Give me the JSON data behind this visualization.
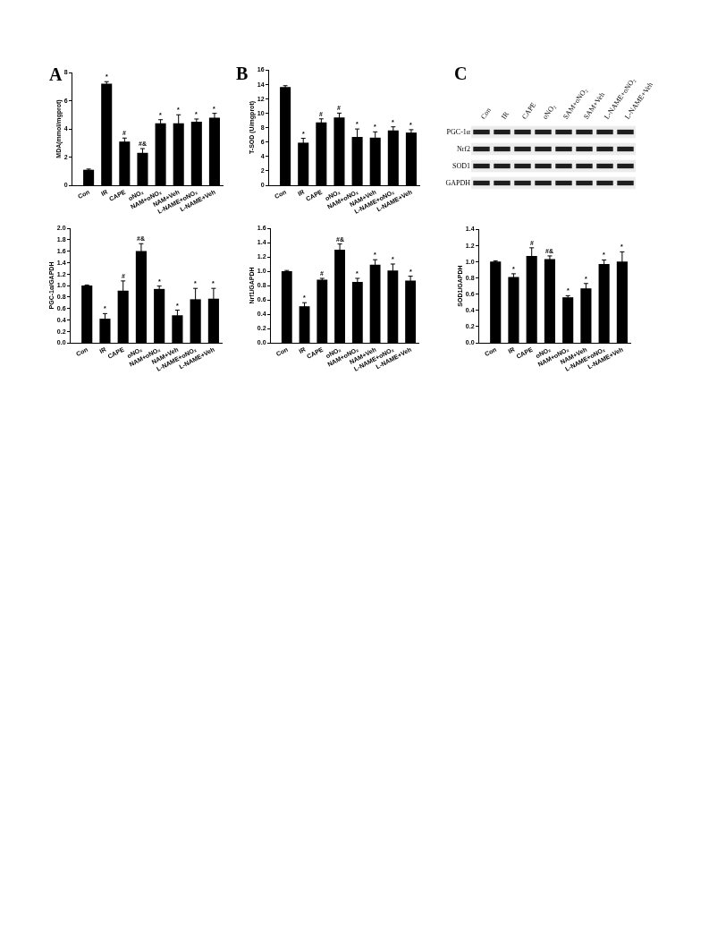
{
  "chart_data": [
    {
      "type": "bar",
      "title": "A",
      "ylabel": "MDA(mmol/mgprot)",
      "categories": [
        "Con",
        "IR",
        "CAPE",
        "oNO₂",
        "NAM+oNO₂",
        "NAM+Veh",
        "L-NAME+oNO₂",
        "L-NAME+Veh"
      ],
      "values": [
        1.1,
        7.2,
        3.1,
        2.3,
        4.4,
        4.4,
        4.5,
        4.8
      ],
      "errors": [
        0.05,
        0.15,
        0.25,
        0.3,
        0.25,
        0.6,
        0.2,
        0.3
      ],
      "color": "#000000",
      "ylim": [
        0,
        8
      ],
      "yticks": [
        0,
        2,
        4,
        6,
        8
      ],
      "annotations": [
        {
          "text": "*",
          "x": "IR",
          "y": 7.35
        },
        {
          "text": "#",
          "x": "CAPE",
          "y": 3.35
        },
        {
          "text": "#&",
          "x": "oNO₂",
          "y": 2.6
        },
        {
          "text": "*",
          "x": "NAM+oNO₂",
          "y": 4.65
        },
        {
          "text": "*",
          "x": "NAM+Veh",
          "y": 5.0
        },
        {
          "text": "*",
          "x": "L-NAME+oNO₂",
          "y": 4.7
        },
        {
          "text": "*",
          "x": "L-NAME+Veh",
          "y": 5.1
        }
      ]
    },
    {
      "type": "bar",
      "title": "B",
      "ylabel": "T-SOD (U/mgprot)",
      "categories": [
        "Con",
        "IR",
        "CAPE",
        "oNO₂",
        "NAM+oNO₂",
        "NAM+Veh",
        "L-NAME+oNO₂",
        "L-NAME+Veh"
      ],
      "values": [
        13.6,
        5.9,
        8.7,
        9.4,
        6.7,
        6.6,
        7.6,
        7.3
      ],
      "errors": [
        0.2,
        0.6,
        0.5,
        0.6,
        1.1,
        0.8,
        0.5,
        0.4
      ],
      "color": "#000000",
      "ylim": [
        0,
        16
      ],
      "yticks": [
        0,
        2,
        4,
        6,
        8,
        10,
        12,
        14,
        16
      ],
      "annotations": [
        {
          "text": "*",
          "x": "IR",
          "y": 6.5
        },
        {
          "text": "#",
          "x": "CAPE",
          "y": 9.2
        },
        {
          "text": "#",
          "x": "oNO₂",
          "y": 10.0
        },
        {
          "text": "*",
          "x": "NAM+oNO₂",
          "y": 7.8
        },
        {
          "text": "*",
          "x": "NAM+Veh",
          "y": 7.4
        },
        {
          "text": "*",
          "x": "L-NAME+oNO₂",
          "y": 8.1
        },
        {
          "text": "*",
          "x": "L-NAME+Veh",
          "y": 7.7
        }
      ]
    },
    {
      "type": "other",
      "title": "C",
      "categories": [
        "Con",
        "IR",
        "CAPE",
        "oNO₂",
        "SAM+oNO₂",
        "SAM+Veh",
        "L-NAME+oNO₂",
        "L-NAME+Veh"
      ],
      "y_categories": [
        "PGC-1α",
        "Nrf2",
        "SOD1",
        "GAPDH"
      ]
    },
    {
      "type": "bar",
      "ylabel": "PGC-1α/GAPDH",
      "categories": [
        "Con",
        "IR",
        "CAPE",
        "oNO₂",
        "NAM+oNO₂",
        "NAM+Veh",
        "L-NAME+oNO₂",
        "L-NAME+Veh"
      ],
      "values": [
        1.0,
        0.42,
        0.91,
        1.6,
        0.94,
        0.48,
        0.76,
        0.77
      ],
      "errors": [
        0.01,
        0.09,
        0.17,
        0.13,
        0.05,
        0.09,
        0.19,
        0.18
      ],
      "color": "#000000",
      "ylim": [
        0,
        2.0
      ],
      "yticks": [
        {
          "value": 0,
          "label": "0.0"
        },
        0.2,
        0.4,
        0.6,
        0.8,
        {
          "value": 1,
          "label": "1.0"
        },
        1.2,
        1.4,
        1.6,
        1.8,
        {
          "value": 2,
          "label": "2.0"
        }
      ],
      "annotations": [
        {
          "text": "*",
          "x": "IR",
          "y": 0.51
        },
        {
          "text": "#",
          "x": "CAPE",
          "y": 1.08
        },
        {
          "text": "#&",
          "x": "oNO₂",
          "y": 1.73
        },
        {
          "text": "*",
          "x": "NAM+oNO₂",
          "y": 0.99
        },
        {
          "text": "*",
          "x": "NAM+Veh",
          "y": 0.57
        },
        {
          "text": "*",
          "x": "L-NAME+oNO₂",
          "y": 0.95
        },
        {
          "text": "*",
          "x": "L-NAME+Veh",
          "y": 0.95
        }
      ]
    },
    {
      "type": "bar",
      "ylabel": "Nrf1/GAPDH",
      "categories": [
        "Con",
        "IR",
        "CAPE",
        "oNO₂",
        "NAM+oNO₂",
        "NAM+Veh",
        "L-NAME+oNO₂",
        "L-NAME+Veh"
      ],
      "values": [
        1.0,
        0.51,
        0.88,
        1.3,
        0.85,
        1.09,
        1.01,
        0.87
      ],
      "errors": [
        0.01,
        0.05,
        0.02,
        0.08,
        0.05,
        0.07,
        0.09,
        0.06
      ],
      "color": "#000000",
      "ylim": [
        0,
        1.6
      ],
      "yticks": [
        {
          "value": 0,
          "label": "0.0"
        },
        0.2,
        0.4,
        0.6,
        0.8,
        {
          "value": 1,
          "label": "1.0"
        },
        1.2,
        1.4,
        1.6
      ],
      "annotations": [
        {
          "text": "*",
          "x": "IR",
          "y": 0.56
        },
        {
          "text": "#",
          "x": "CAPE",
          "y": 0.9
        },
        {
          "text": "#&",
          "x": "oNO₂",
          "y": 1.38
        },
        {
          "text": "*",
          "x": "NAM+oNO₂",
          "y": 0.9
        },
        {
          "text": "*",
          "x": "NAM+Veh",
          "y": 1.16
        },
        {
          "text": "*",
          "x": "L-NAME+oNO₂",
          "y": 1.1
        },
        {
          "text": "*",
          "x": "L-NAME+Veh",
          "y": 0.93
        }
      ]
    },
    {
      "type": "bar",
      "ylabel": "SOD1/GAPDH",
      "categories": [
        "Con",
        "IR",
        "CAPE",
        "oNO₂",
        "NAM+oNO₂",
        "NAM+Veh",
        "L-NAME+oNO₂",
        "L-NAME+Veh"
      ],
      "values": [
        1.0,
        0.81,
        1.07,
        1.03,
        0.56,
        0.67,
        0.97,
        1.0
      ],
      "errors": [
        0.01,
        0.04,
        0.1,
        0.04,
        0.02,
        0.06,
        0.05,
        0.12
      ],
      "color": "#000000",
      "ylim": [
        0,
        1.4
      ],
      "yticks": [
        {
          "value": 0,
          "label": "0.0"
        },
        0.2,
        0.4,
        0.6,
        0.8,
        {
          "value": 1,
          "label": "1.0"
        },
        1.2,
        1.4
      ],
      "annotations": [
        {
          "text": "*",
          "x": "IR",
          "y": 0.85
        },
        {
          "text": "#",
          "x": "CAPE",
          "y": 1.17
        },
        {
          "text": "#&",
          "x": "oNO₂",
          "y": 1.07
        },
        {
          "text": "*",
          "x": "NAM+oNO₂",
          "y": 0.58
        },
        {
          "text": "*",
          "x": "NAM+Veh",
          "y": 0.73
        },
        {
          "text": "*",
          "x": "L-NAME+oNO₂",
          "y": 1.02
        },
        {
          "text": "*",
          "x": "L-NAME+Veh",
          "y": 1.12
        }
      ]
    }
  ]
}
